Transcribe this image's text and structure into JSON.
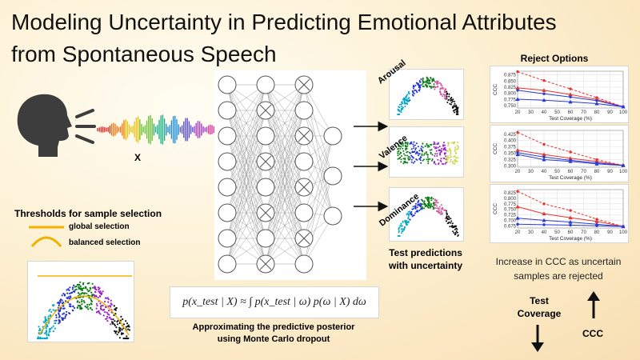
{
  "title": {
    "line1": "Modeling Uncertainty in Predicting Emotional Attributes",
    "line2": "from Spontaneous Speech"
  },
  "input": {
    "label": "X"
  },
  "thresholds": {
    "heading": "Thresholds for sample selection",
    "global_label": "global selection",
    "balanced_label": "balanced selection",
    "line_color": "#f2b100"
  },
  "formula": {
    "text": "p(x_test | X) ≈ ∫ p(x_test | ω) p(ω | X) dω",
    "caption_line1": "Approximating the predictive posterior",
    "caption_line2": "using Monte Carlo dropout"
  },
  "predictions": {
    "attributes": [
      "Arousal",
      "Valence",
      "Dominance"
    ],
    "caption_line1": "Test predictions",
    "caption_line2": "with uncertainty"
  },
  "reject": {
    "heading": "Reject Options",
    "caption_line1": "Increase in CCC as uncertain",
    "caption_line2": "samples are rejected",
    "test_coverage_line1": "Test",
    "test_coverage_line2": "Coverage",
    "ccc_label": "CCC"
  },
  "chart_data": [
    {
      "type": "line",
      "title": "",
      "xlabel": "Test Coverage (%)",
      "ylabel": "CCC",
      "x": [
        20,
        30,
        40,
        50,
        60,
        70,
        80,
        90,
        100
      ],
      "xticks": [
        20,
        30,
        40,
        50,
        60,
        70,
        80,
        90,
        100
      ],
      "yticks": [
        "0.750",
        "0.775",
        "0.800",
        "0.825",
        "0.850",
        "0.875"
      ],
      "ylim": [
        0.74,
        0.89
      ],
      "grid": true,
      "series": [
        {
          "x": [
            20,
            40,
            60,
            80,
            100
          ],
          "values": [
            0.888,
            0.852,
            0.818,
            0.782,
            0.745
          ],
          "color": "#e8322d",
          "dash": true,
          "marker": "circle"
        },
        {
          "x": [
            20,
            40,
            60,
            80,
            100
          ],
          "values": [
            0.822,
            0.812,
            0.795,
            0.775,
            0.745
          ],
          "color": "#e8322d",
          "dash": false,
          "marker": "triangle"
        },
        {
          "x": [
            20,
            40,
            60,
            80,
            100
          ],
          "values": [
            0.812,
            0.798,
            0.785,
            0.77,
            0.745
          ],
          "color": "#2a3ad6",
          "dash": false,
          "marker": "circle"
        },
        {
          "x": [
            20,
            40,
            60,
            80,
            100
          ],
          "values": [
            0.776,
            0.772,
            0.765,
            0.758,
            0.745
          ],
          "color": "#2a3ad6",
          "dash": false,
          "marker": "triangle"
        }
      ]
    },
    {
      "type": "line",
      "title": "",
      "xlabel": "Test Coverage (%)",
      "ylabel": "CCC",
      "x": [
        20,
        30,
        40,
        50,
        60,
        70,
        80,
        90,
        100
      ],
      "xticks": [
        20,
        30,
        40,
        50,
        60,
        70,
        80,
        90,
        100
      ],
      "yticks": [
        "0.300",
        "0.325",
        "0.350",
        "0.375",
        "0.400",
        "0.425"
      ],
      "ylim": [
        0.295,
        0.44
      ],
      "grid": true,
      "series": [
        {
          "x": [
            20,
            40,
            60,
            80,
            100
          ],
          "values": [
            0.432,
            0.385,
            0.355,
            0.325,
            0.302
          ],
          "color": "#e8322d",
          "dash": true,
          "marker": "circle"
        },
        {
          "x": [
            20,
            40,
            60,
            80,
            100
          ],
          "values": [
            0.362,
            0.345,
            0.33,
            0.318,
            0.302
          ],
          "color": "#e8322d",
          "dash": false,
          "marker": "triangle"
        },
        {
          "x": [
            20,
            40,
            60,
            80,
            100
          ],
          "values": [
            0.352,
            0.335,
            0.322,
            0.312,
            0.302
          ],
          "color": "#2a3ad6",
          "dash": false,
          "marker": "circle"
        },
        {
          "x": [
            20,
            40,
            60,
            80,
            100
          ],
          "values": [
            0.345,
            0.325,
            0.318,
            0.308,
            0.302
          ],
          "color": "#2a3ad6",
          "dash": false,
          "marker": "triangle"
        }
      ]
    },
    {
      "type": "line",
      "title": "",
      "xlabel": "Test Coverage (%)",
      "ylabel": "CCC",
      "x": [
        20,
        30,
        40,
        50,
        60,
        70,
        80,
        90,
        100
      ],
      "xticks": [
        20,
        30,
        40,
        50,
        60,
        70,
        80,
        90,
        100
      ],
      "yticks": [
        "0.675",
        "0.700",
        "0.725",
        "0.750",
        "0.775",
        "0.800",
        "0.825"
      ],
      "ylim": [
        0.665,
        0.84
      ],
      "grid": true,
      "series": [
        {
          "x": [
            20,
            40,
            60,
            80,
            100
          ],
          "values": [
            0.832,
            0.775,
            0.745,
            0.705,
            0.672
          ],
          "color": "#e8322d",
          "dash": true,
          "marker": "circle"
        },
        {
          "x": [
            20,
            40,
            60,
            80,
            100
          ],
          "values": [
            0.762,
            0.73,
            0.712,
            0.695,
            0.672
          ],
          "color": "#e8322d",
          "dash": false,
          "marker": "triangle"
        },
        {
          "x": [
            20,
            40,
            60,
            80,
            100
          ],
          "values": [
            0.71,
            0.7,
            0.692,
            0.682,
            0.672
          ],
          "color": "#2a3ad6",
          "dash": false,
          "marker": "triangle"
        },
        {
          "x": [
            20,
            40,
            60,
            80,
            100
          ],
          "values": [
            0.682,
            0.68,
            0.678,
            0.675,
            0.672
          ],
          "color": "#2a3ad6",
          "dash": false,
          "marker": "circle"
        }
      ]
    }
  ]
}
